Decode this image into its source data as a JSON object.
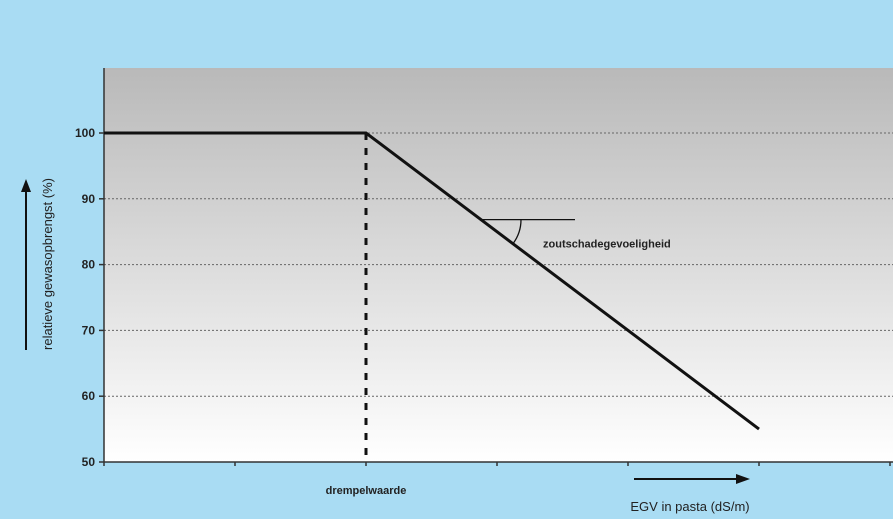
{
  "colors": {
    "background": "#a9dcf3",
    "plot_top": "#b9b9b9",
    "plot_bottom": "#ffffff",
    "line": "#111111"
  },
  "chart_data": {
    "type": "line",
    "title": "",
    "ylabel": "relatieve gewasopbrengst (%)",
    "xlabel": "EGV in pasta (dS/m)",
    "ylim": [
      50,
      100
    ],
    "xlim": [
      0,
      6
    ],
    "y_ticks": [
      50,
      60,
      70,
      80,
      90,
      100
    ],
    "grid": true,
    "series": [
      {
        "x": [
          0,
          2,
          5
        ],
        "y": [
          100,
          100,
          55
        ]
      }
    ],
    "threshold": {
      "x": 2,
      "label": "drempelwaarde"
    },
    "annotations": [
      {
        "text": "zoutschadegevoeligheid"
      }
    ]
  }
}
